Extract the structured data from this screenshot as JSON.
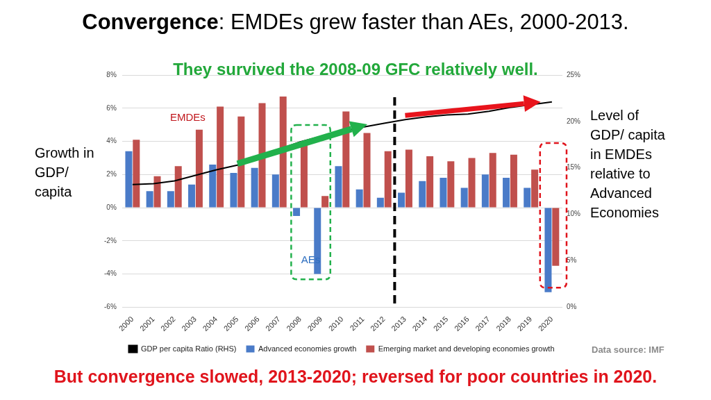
{
  "chart_data": {
    "type": "bar",
    "title": "Convergence: EMDEs grew faster than AEs, 2000-2013.",
    "subtitle": "They survived the 2008-09 GFC relatively well.",
    "ylabel": "Growth in GDP/ capita",
    "y2label": "Level of GDP/ capita in EMDEs relative to Advanced Economies",
    "categories": [
      "2000",
      "2001",
      "2002",
      "2003",
      "2004",
      "2005",
      "2006",
      "2007",
      "2008",
      "2009",
      "2010",
      "2011",
      "2012",
      "2013",
      "2014",
      "2015",
      "2016",
      "2017",
      "2018",
      "2019",
      "2020"
    ],
    "series": [
      {
        "name": "Advanced economies growth",
        "color": "#4a7bc8",
        "values": [
          3.4,
          1.0,
          1.0,
          1.4,
          2.6,
          2.1,
          2.4,
          2.0,
          -0.5,
          -4.0,
          2.5,
          1.1,
          0.6,
          0.9,
          1.6,
          1.8,
          1.2,
          2.0,
          1.8,
          1.2,
          -5.1
        ]
      },
      {
        "name": "Emerging market and developing economies growth",
        "color": "#c0504d",
        "values": [
          4.1,
          1.9,
          2.5,
          4.7,
          6.1,
          5.5,
          6.3,
          6.7,
          4.0,
          0.7,
          5.8,
          4.5,
          3.4,
          3.5,
          3.1,
          2.8,
          3.0,
          3.3,
          3.2,
          2.3,
          -3.5
        ]
      },
      {
        "name": "GDP per capita Ratio (RHS)",
        "type": "line",
        "color": "#000000",
        "axis": "y2",
        "values": [
          13.2,
          13.3,
          13.6,
          14.2,
          14.8,
          15.3,
          16.2,
          17.0,
          17.8,
          18.4,
          18.9,
          19.4,
          19.8,
          20.2,
          20.5,
          20.7,
          20.8,
          21.1,
          21.5,
          21.8,
          22.1
        ]
      }
    ],
    "ylim": [
      -6,
      8
    ],
    "yticks": [
      {
        "value": -6,
        "label": "-6%"
      },
      {
        "value": -4,
        "label": "-4%"
      },
      {
        "value": -2,
        "label": "-2%"
      },
      {
        "value": 0,
        "label": "0%"
      },
      {
        "value": 2,
        "label": "2%"
      },
      {
        "value": 4,
        "label": "4%"
      },
      {
        "value": 6,
        "label": "6%"
      },
      {
        "value": 8,
        "label": "8%"
      }
    ],
    "y2lim": [
      0,
      25
    ],
    "y2ticks": [
      {
        "value": 0,
        "label": "0%"
      },
      {
        "value": 5,
        "label": "5%"
      },
      {
        "value": 10,
        "label": "10%"
      },
      {
        "value": 15,
        "label": "15%"
      },
      {
        "value": 20,
        "label": "20%"
      },
      {
        "value": 25,
        "label": "25%"
      }
    ],
    "grid": true,
    "legend": "bottom",
    "annotations": [
      "EMDEs",
      "AEs",
      "But convergence slowed, 2013-2020; reversed for poor countries in 2020.",
      "Data source: IMF"
    ]
  }
}
